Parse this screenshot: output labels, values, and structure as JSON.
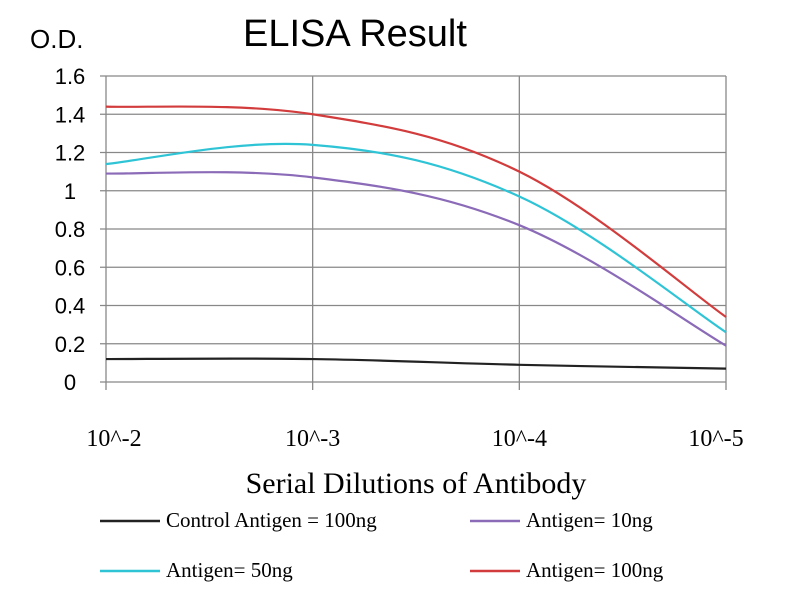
{
  "chart_data": {
    "type": "line",
    "title": "ELISA Result",
    "ylabel": "O.D.",
    "xlabel": "Serial Dilutions of Antibody",
    "categories": [
      "10^-2",
      "10^-3",
      "10^-4",
      "10^-5"
    ],
    "x": [
      0.01,
      0.001,
      0.0001,
      1e-05
    ],
    "ylim": [
      0,
      1.6
    ],
    "yticks": [
      "0",
      "0.2",
      "0.4",
      "0.6",
      "0.8",
      "1",
      "1.2",
      "1.4",
      "1.6"
    ],
    "grid": true,
    "legend_position": "bottom",
    "series": [
      {
        "name": "Control Antigen = 100ng",
        "color": "#222222",
        "values": [
          0.12,
          0.12,
          0.09,
          0.07
        ]
      },
      {
        "name": "Antigen= 10ng",
        "color": "#8b6bb8",
        "values": [
          1.09,
          1.07,
          0.82,
          0.19
        ]
      },
      {
        "name": "Antigen= 50ng",
        "color": "#2ec4d6",
        "values": [
          1.14,
          1.24,
          0.97,
          0.26
        ]
      },
      {
        "name": "Antigen= 100ng",
        "color": "#d23c3c",
        "values": [
          1.44,
          1.4,
          1.1,
          0.34
        ]
      }
    ]
  }
}
